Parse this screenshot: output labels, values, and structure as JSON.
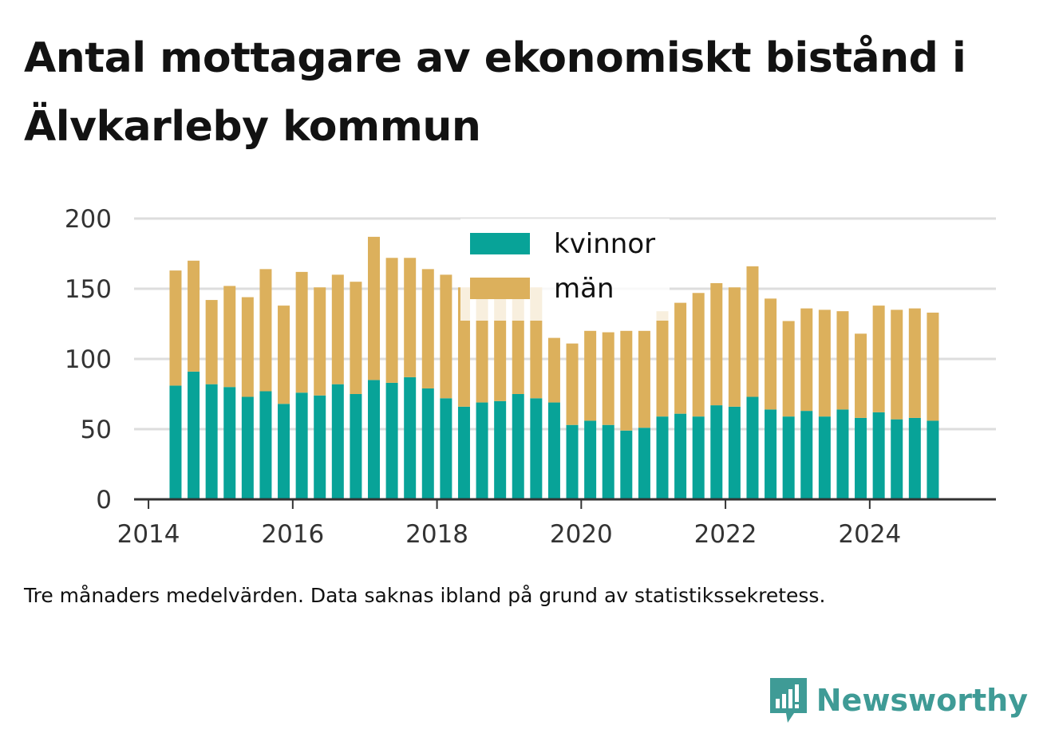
{
  "title": "Antal mottagare av ekonomiskt bistånd i Älvkarleby kommun",
  "caption": "Tre månaders medelvärden. Data saknas ibland på grund av statistikssekretess.",
  "brand": {
    "name": "Newsworthy",
    "logo_icon": "newsworthy-bar-chart-icon",
    "color": "#3f9b96"
  },
  "colors": {
    "kvinnor": "#08a398",
    "man": "#dcb05c",
    "grid": "#dddddd",
    "axis": "#333333",
    "tick_text": "#333333"
  },
  "chart_data": {
    "type": "bar",
    "stacked": true,
    "x_unit": "year",
    "x": [
      2014.375,
      2014.625,
      2014.875,
      2015.125,
      2015.375,
      2015.625,
      2015.875,
      2016.125,
      2016.375,
      2016.625,
      2016.875,
      2017.125,
      2017.375,
      2017.625,
      2017.875,
      2018.125,
      2018.375,
      2018.625,
      2018.875,
      2019.125,
      2019.375,
      2019.625,
      2019.875,
      2020.125,
      2020.375,
      2020.625,
      2020.875,
      2021.125,
      2021.375,
      2021.625,
      2021.875,
      2022.125,
      2022.375,
      2022.625,
      2022.875,
      2023.125,
      2023.375,
      2023.625,
      2023.875,
      2024.125,
      2024.375,
      2024.625,
      2024.875
    ],
    "series": [
      {
        "name": "kvinnor",
        "color": "#08a398",
        "values": [
          81,
          91,
          82,
          80,
          73,
          77,
          68,
          76,
          74,
          82,
          75,
          85,
          83,
          87,
          79,
          72,
          66,
          69,
          70,
          75,
          72,
          69,
          53,
          56,
          53,
          49,
          51,
          59,
          61,
          59,
          67,
          66,
          73,
          64,
          59,
          63,
          59,
          64,
          58,
          62,
          57,
          58,
          56
        ]
      },
      {
        "name": "män",
        "color": "#dcb05c",
        "values": [
          82,
          79,
          60,
          72,
          71,
          87,
          70,
          86,
          77,
          78,
          80,
          102,
          89,
          85,
          85,
          88,
          85,
          87,
          86,
          82,
          79,
          46,
          58,
          64,
          66,
          71,
          69,
          75,
          79,
          88,
          87,
          85,
          93,
          79,
          68,
          73,
          76,
          70,
          60,
          76,
          78,
          78,
          77
        ]
      }
    ],
    "xticks": [
      "2014",
      "2016",
      "2018",
      "2020",
      "2022",
      "2024"
    ],
    "yticks": [
      "0",
      "50",
      "100",
      "150",
      "200"
    ],
    "xlim": [
      2013.8,
      2025.75
    ],
    "ylim": [
      0,
      200
    ],
    "grid": true,
    "legend": {
      "position": "top-center",
      "entries": [
        "kvinnor",
        "män"
      ]
    }
  }
}
